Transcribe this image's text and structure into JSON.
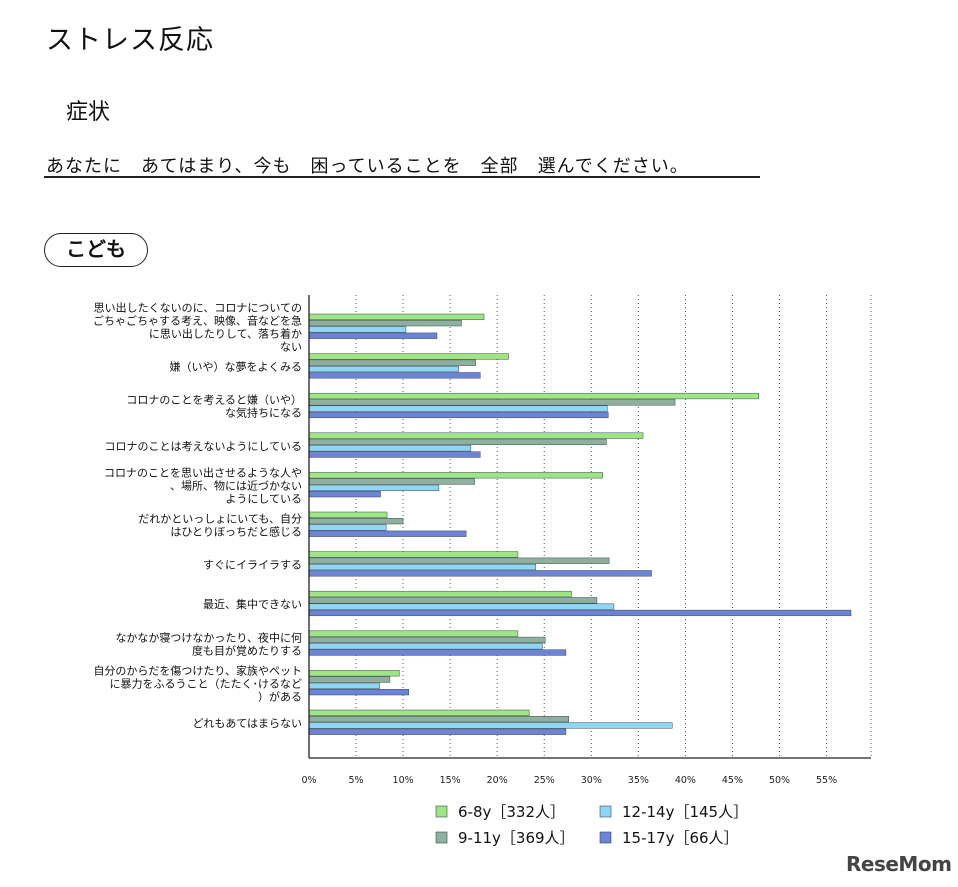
{
  "page": {
    "title": "ストレス反応",
    "subtitle": "症状",
    "instruction": "あなたに　あてはまり、今も　困っていることを　全部　選んでください。",
    "group_label": "こども",
    "logo_text": "ReseMom"
  },
  "chart_data": {
    "type": "bar",
    "orientation": "horizontal",
    "xlim": [
      0,
      57.5
    ],
    "x_ticks": [
      "0%",
      "5%",
      "10%",
      "15%",
      "20%",
      "25%",
      "30%",
      "35%",
      "40%",
      "45%",
      "50%",
      "55%"
    ],
    "categories": [
      [
        "思い出したくないのに、コロナについての",
        "ごちゃごちゃする考え、映像、音などを急",
        "に思い出したりして、落ち着か",
        "ない"
      ],
      [
        "嫌（いや）な夢をよくみる"
      ],
      [
        "コロナのことを考えると嫌（いや）",
        "な気持ちになる"
      ],
      [
        "コロナのことは考えないようにしている"
      ],
      [
        "コロナのことを思い出させるような人や",
        "、場所、物には近づかない",
        "ようにしている"
      ],
      [
        "だれかといっしょにいても、自分",
        "はひとりぼっちだと感じる"
      ],
      [
        "すぐにイライラする"
      ],
      [
        "最近、集中できない"
      ],
      [
        "なかなか寝つけなかったり、夜中に何",
        "度も目が覚めたりする"
      ],
      [
        "自分のからだを傷つけたり、家族やペット",
        "に暴力をふるうこと（たたく･けるなど",
        "）がある"
      ],
      [
        "どれもあてはまらない"
      ]
    ],
    "series": [
      {
        "name": "6-8y［332人］",
        "color": "#9ee584",
        "values": [
          18.6,
          21.2,
          47.8,
          35.5,
          31.2,
          8.3,
          22.2,
          27.9,
          22.2,
          9.6,
          23.4
        ]
      },
      {
        "name": "9-11y［369人］",
        "color": "#8fb09f",
        "values": [
          16.2,
          17.7,
          38.9,
          31.6,
          17.6,
          10.0,
          31.9,
          30.6,
          25.1,
          8.6,
          27.6
        ]
      },
      {
        "name": "12-14y［145人］",
        "color": "#8fd6f5",
        "values": [
          10.3,
          15.9,
          31.7,
          17.2,
          13.8,
          8.2,
          24.1,
          32.4,
          24.8,
          7.5,
          38.6
        ]
      },
      {
        "name": "15-17y［66人］",
        "color": "#6c83d6",
        "values": [
          13.6,
          18.2,
          31.8,
          18.2,
          7.6,
          16.7,
          36.4,
          57.6,
          27.3,
          10.6,
          27.3
        ]
      }
    ],
    "legend_position": "bottom",
    "grid": true
  }
}
